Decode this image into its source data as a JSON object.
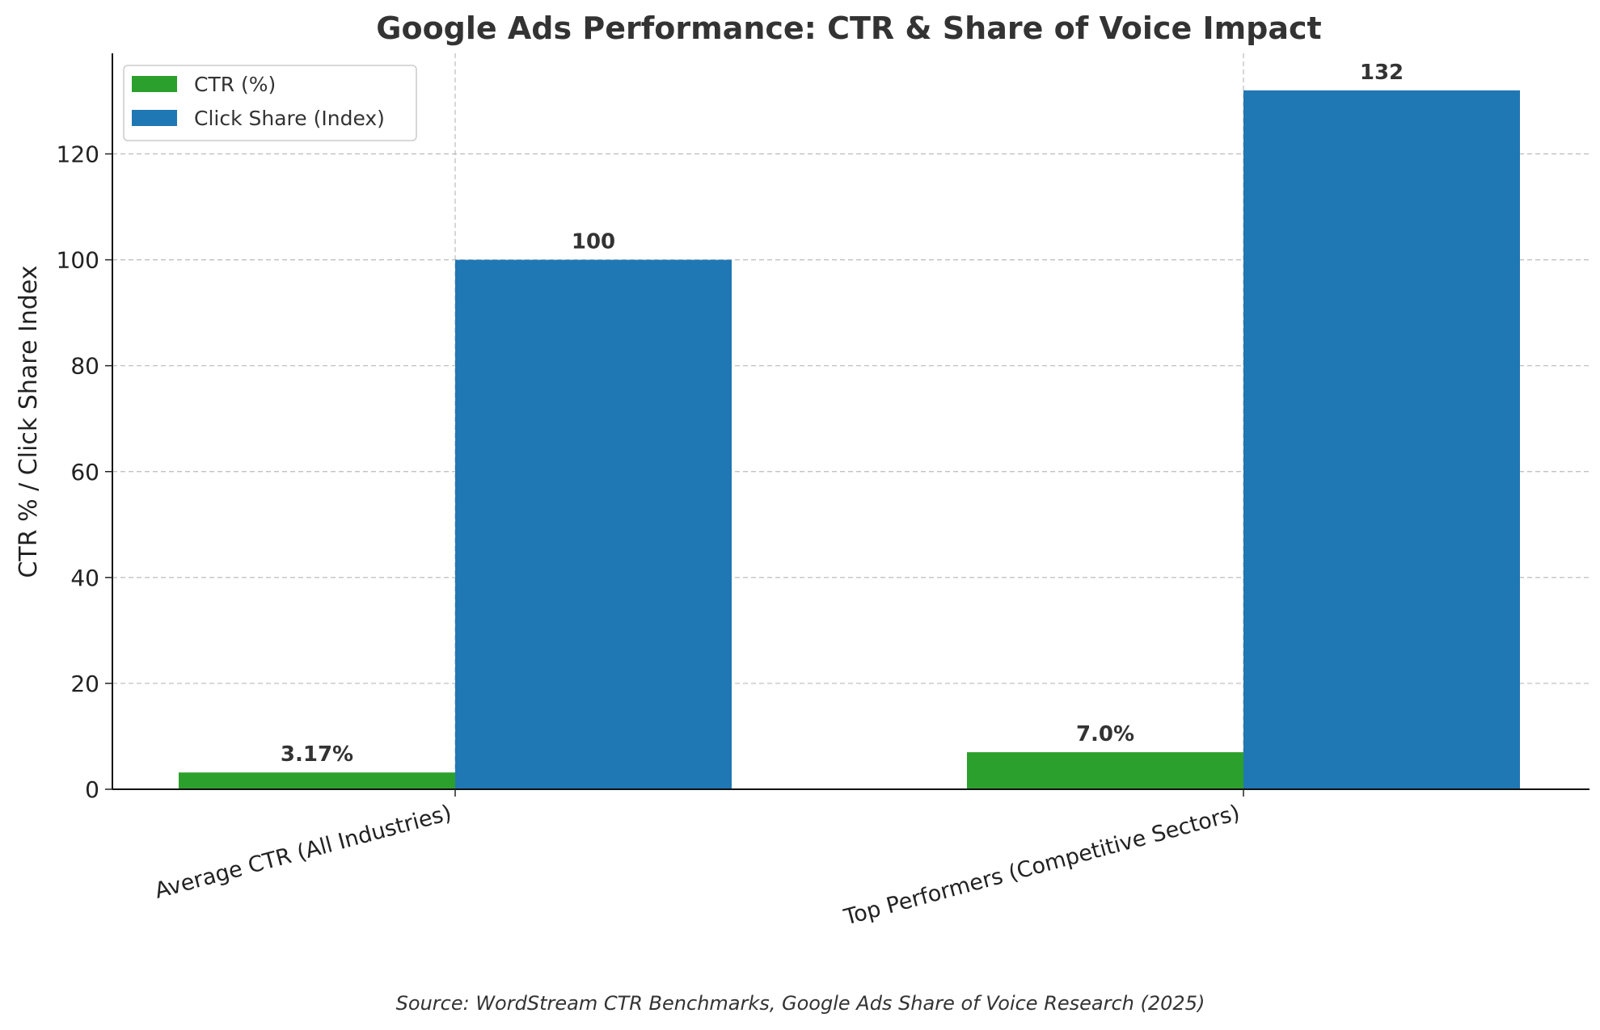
{
  "chart_data": {
    "type": "bar",
    "title": "Google Ads Performance: CTR & Share of Voice Impact",
    "xlabel": "",
    "ylabel": "CTR % / Click Share Index",
    "categories": [
      "Average CTR (All Industries)",
      "Top Performers (Competitive Sectors)"
    ],
    "series": [
      {
        "name": "CTR (%)",
        "color": "#2ca02c",
        "values": [
          3.17,
          7.0
        ],
        "labels": [
          "3.17%",
          "7.0%"
        ]
      },
      {
        "name": "Click Share (Index)",
        "color": "#1f77b4",
        "values": [
          100,
          132
        ],
        "labels": [
          "100",
          "132"
        ]
      }
    ],
    "ylim": [
      0,
      139
    ],
    "yticks": [
      0,
      20,
      40,
      60,
      80,
      100,
      120
    ],
    "grid": true,
    "legend": "top-left",
    "source": "Source: WordStream CTR Benchmarks, Google Ads Share of Voice Research (2025)"
  }
}
